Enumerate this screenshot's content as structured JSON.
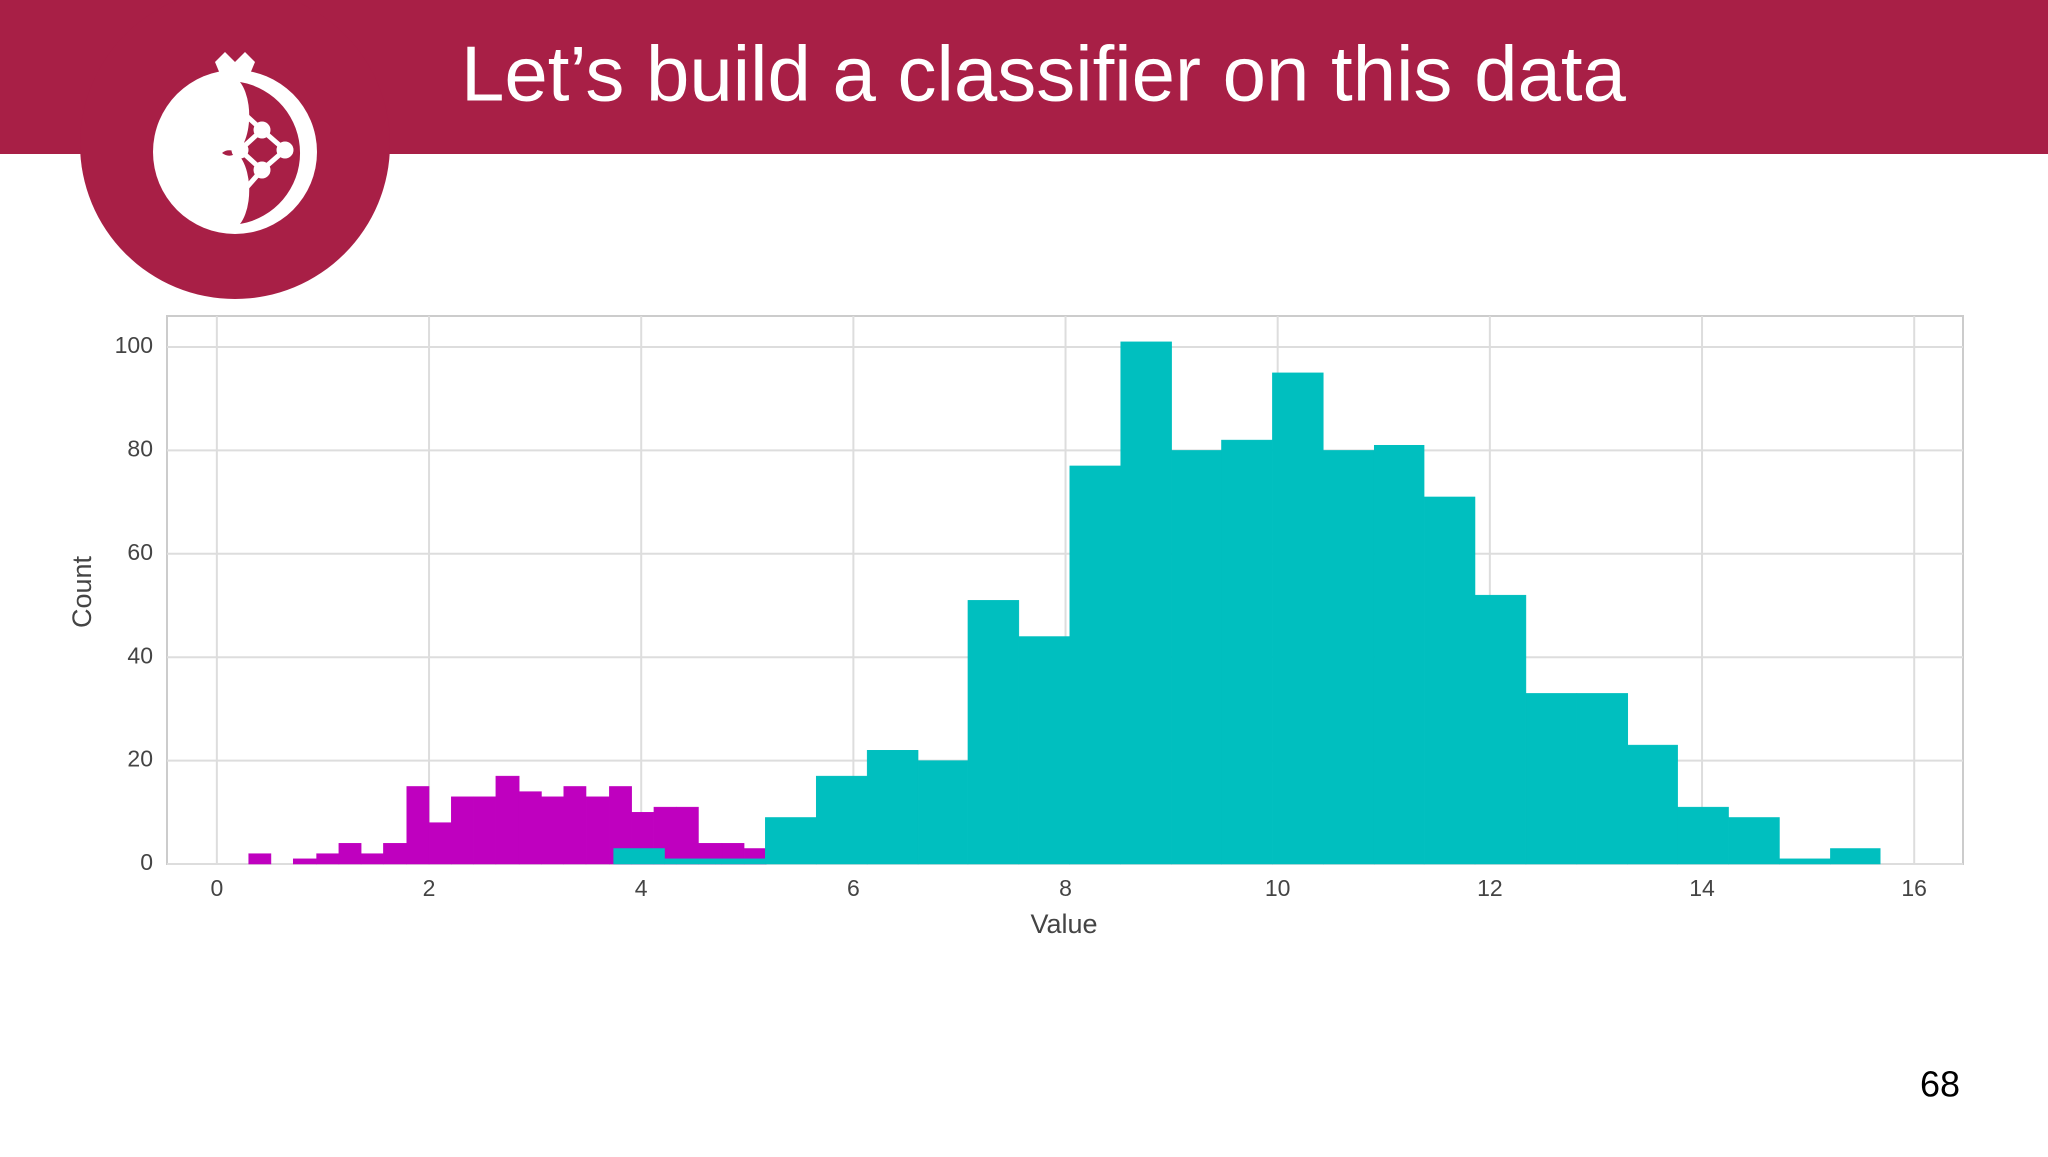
{
  "slide": {
    "title": "Let’s build a classifier on this data",
    "page_number": "68"
  },
  "chart_data": {
    "type": "histogram",
    "xlabel": "Value",
    "ylabel": "Count",
    "xlim": [
      -0.47,
      16.46
    ],
    "ylim": [
      0,
      106
    ],
    "xticks": [
      0,
      2,
      4,
      6,
      8,
      10,
      12,
      14,
      16
    ],
    "yticks": [
      0,
      20,
      40,
      60,
      80,
      100
    ],
    "grid": true,
    "series": [
      {
        "color": "#bf00bf",
        "bins": [
          0.3,
          0.51,
          0.72,
          0.94,
          1.15,
          1.36,
          1.57,
          1.79,
          2.0,
          2.21,
          2.42,
          2.63,
          2.85,
          3.06,
          3.27,
          3.48,
          3.7,
          3.91,
          4.12,
          4.33,
          4.54,
          4.76,
          4.97,
          5.18
        ],
        "values": [
          2,
          0,
          1,
          2,
          4,
          2,
          4,
          15,
          8,
          13,
          13,
          17,
          14,
          13,
          15,
          13,
          15,
          10,
          11,
          11,
          4,
          4,
          3
        ]
      },
      {
        "color": "#00bfbf",
        "bins": [
          3.74,
          4.22,
          4.7,
          5.17,
          5.65,
          6.13,
          6.61,
          7.08,
          7.56,
          8.04,
          8.52,
          9.0,
          9.47,
          9.95,
          10.43,
          10.91,
          11.38,
          11.86,
          12.34,
          12.82,
          13.3,
          13.77,
          14.25,
          14.73,
          15.21,
          15.68
        ],
        "values": [
          3,
          1,
          1,
          9,
          17,
          22,
          20,
          51,
          44,
          77,
          101,
          80,
          82,
          95,
          80,
          81,
          71,
          52,
          33,
          33,
          23,
          11,
          9,
          1,
          3
        ]
      }
    ]
  }
}
